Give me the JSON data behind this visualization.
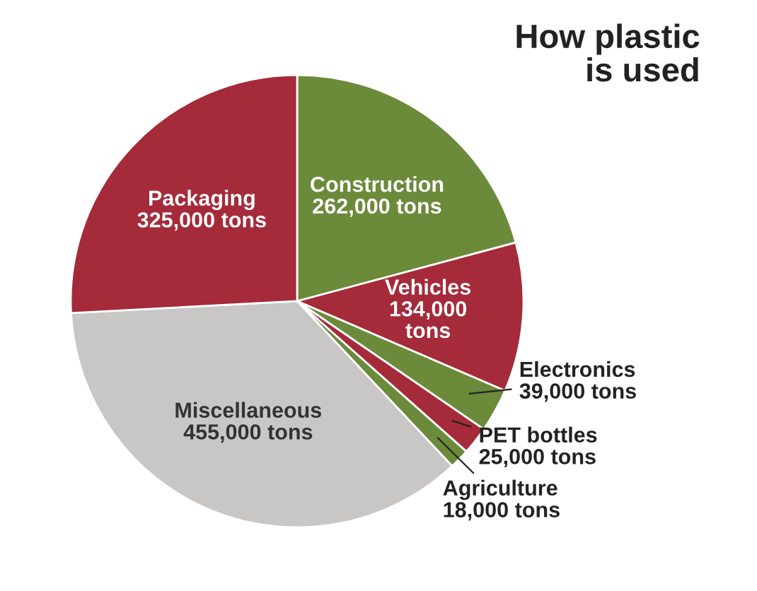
{
  "chart_data": {
    "type": "pie",
    "title": "How plastic\nis used",
    "categories": [
      "Construction",
      "Vehicles",
      "Electronics",
      "PET bottles",
      "Agriculture",
      "Miscellaneous",
      "Packaging"
    ],
    "values": [
      262000,
      134000,
      39000,
      25000,
      18000,
      455000,
      325000
    ],
    "value_labels": [
      "262,000 tons",
      "134,000\ntons",
      "39,000 tons",
      "25,000 tons",
      "18,000 tons",
      "455,000 tons",
      "325,000 tons"
    ],
    "colors": [
      "#6b8a3a",
      "#a52a3a",
      "#6b8a3a",
      "#a52a3a",
      "#6b8a3a",
      "#c9c7c5",
      "#a52a3a"
    ],
    "legend": false
  }
}
